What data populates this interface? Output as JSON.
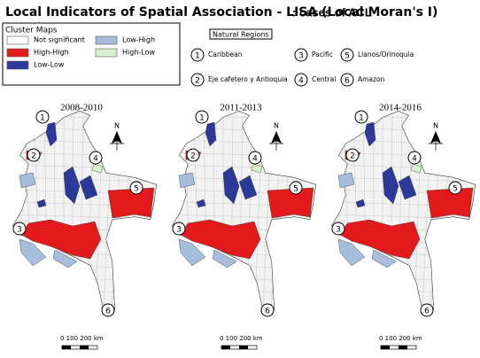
{
  "title": {
    "main": "Local Indicators of Spatial Association - LISA (Local Moran's I)",
    "suffix": ": cases of ACL"
  },
  "legend": {
    "title": "Cluster Maps",
    "items": [
      {
        "label": "Not significant",
        "color": "#ffffff"
      },
      {
        "label": "High-High",
        "color": "#e31a1c"
      },
      {
        "label": "Low-Low",
        "color": "#2b3a9a"
      },
      {
        "label": "Low-High",
        "color": "#a6bddb"
      },
      {
        "label": "High-Low",
        "color": "#d9f0d3"
      }
    ]
  },
  "regions": {
    "title": "Natural Regions",
    "items": [
      {
        "number": "1",
        "name": "Caribbean"
      },
      {
        "number": "2",
        "name": "Eje cafetero y Antioquia"
      },
      {
        "number": "3",
        "name": "Pacific"
      },
      {
        "number": "4",
        "name": "Central"
      },
      {
        "number": "5",
        "name": "Llanos/Orinoquia"
      },
      {
        "number": "6",
        "name": "Amazon"
      }
    ]
  },
  "maps": [
    {
      "period": "2008-2010"
    },
    {
      "period": "2011-2013"
    },
    {
      "period": "2014-2016"
    }
  ],
  "north": "N",
  "scale": "0  100 200 km"
}
